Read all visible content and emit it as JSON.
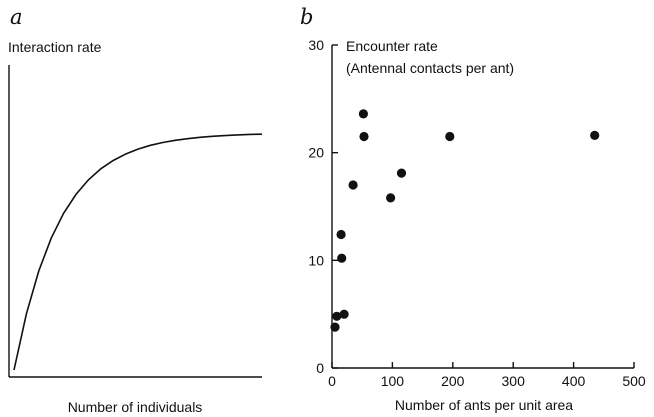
{
  "chart_data": [
    {
      "type": "line",
      "panel_letter": "a",
      "ylabel": "Interaction rate",
      "xlabel": "Number of individuals",
      "curve": {
        "shape": "saturating",
        "x": [
          0,
          0.05,
          0.1,
          0.15,
          0.2,
          0.25,
          0.3,
          0.35,
          0.4,
          0.45,
          0.5,
          0.55,
          0.6,
          0.65,
          0.7,
          0.75,
          0.8,
          0.85,
          0.9,
          0.95,
          1.0
        ],
        "y": [
          0,
          0.237,
          0.418,
          0.556,
          0.661,
          0.741,
          0.802,
          0.849,
          0.884,
          0.911,
          0.932,
          0.948,
          0.96,
          0.969,
          0.976,
          0.982,
          0.986,
          0.989,
          0.992,
          0.994,
          0.995
        ]
      },
      "color": "#111111"
    },
    {
      "type": "scatter",
      "panel_letter": "b",
      "ylabel_line1": "Encounter rate",
      "ylabel_line2": "(Antennal contacts per ant)",
      "xlabel": "Number of ants per unit area",
      "xlim": [
        0,
        500
      ],
      "ylim": [
        0,
        30
      ],
      "xticks": [
        0,
        100,
        200,
        300,
        400,
        500
      ],
      "yticks": [
        0,
        10,
        20,
        30
      ],
      "grid": false,
      "points": [
        {
          "x": 5,
          "y": 3.8
        },
        {
          "x": 8,
          "y": 4.8
        },
        {
          "x": 15,
          "y": 12.4
        },
        {
          "x": 16,
          "y": 10.2
        },
        {
          "x": 20,
          "y": 5.0
        },
        {
          "x": 35,
          "y": 17.0
        },
        {
          "x": 52,
          "y": 23.6
        },
        {
          "x": 53,
          "y": 21.5
        },
        {
          "x": 97,
          "y": 15.8
        },
        {
          "x": 115,
          "y": 18.1
        },
        {
          "x": 195,
          "y": 21.5
        },
        {
          "x": 435,
          "y": 21.6
        }
      ],
      "color": "#111111"
    }
  ]
}
